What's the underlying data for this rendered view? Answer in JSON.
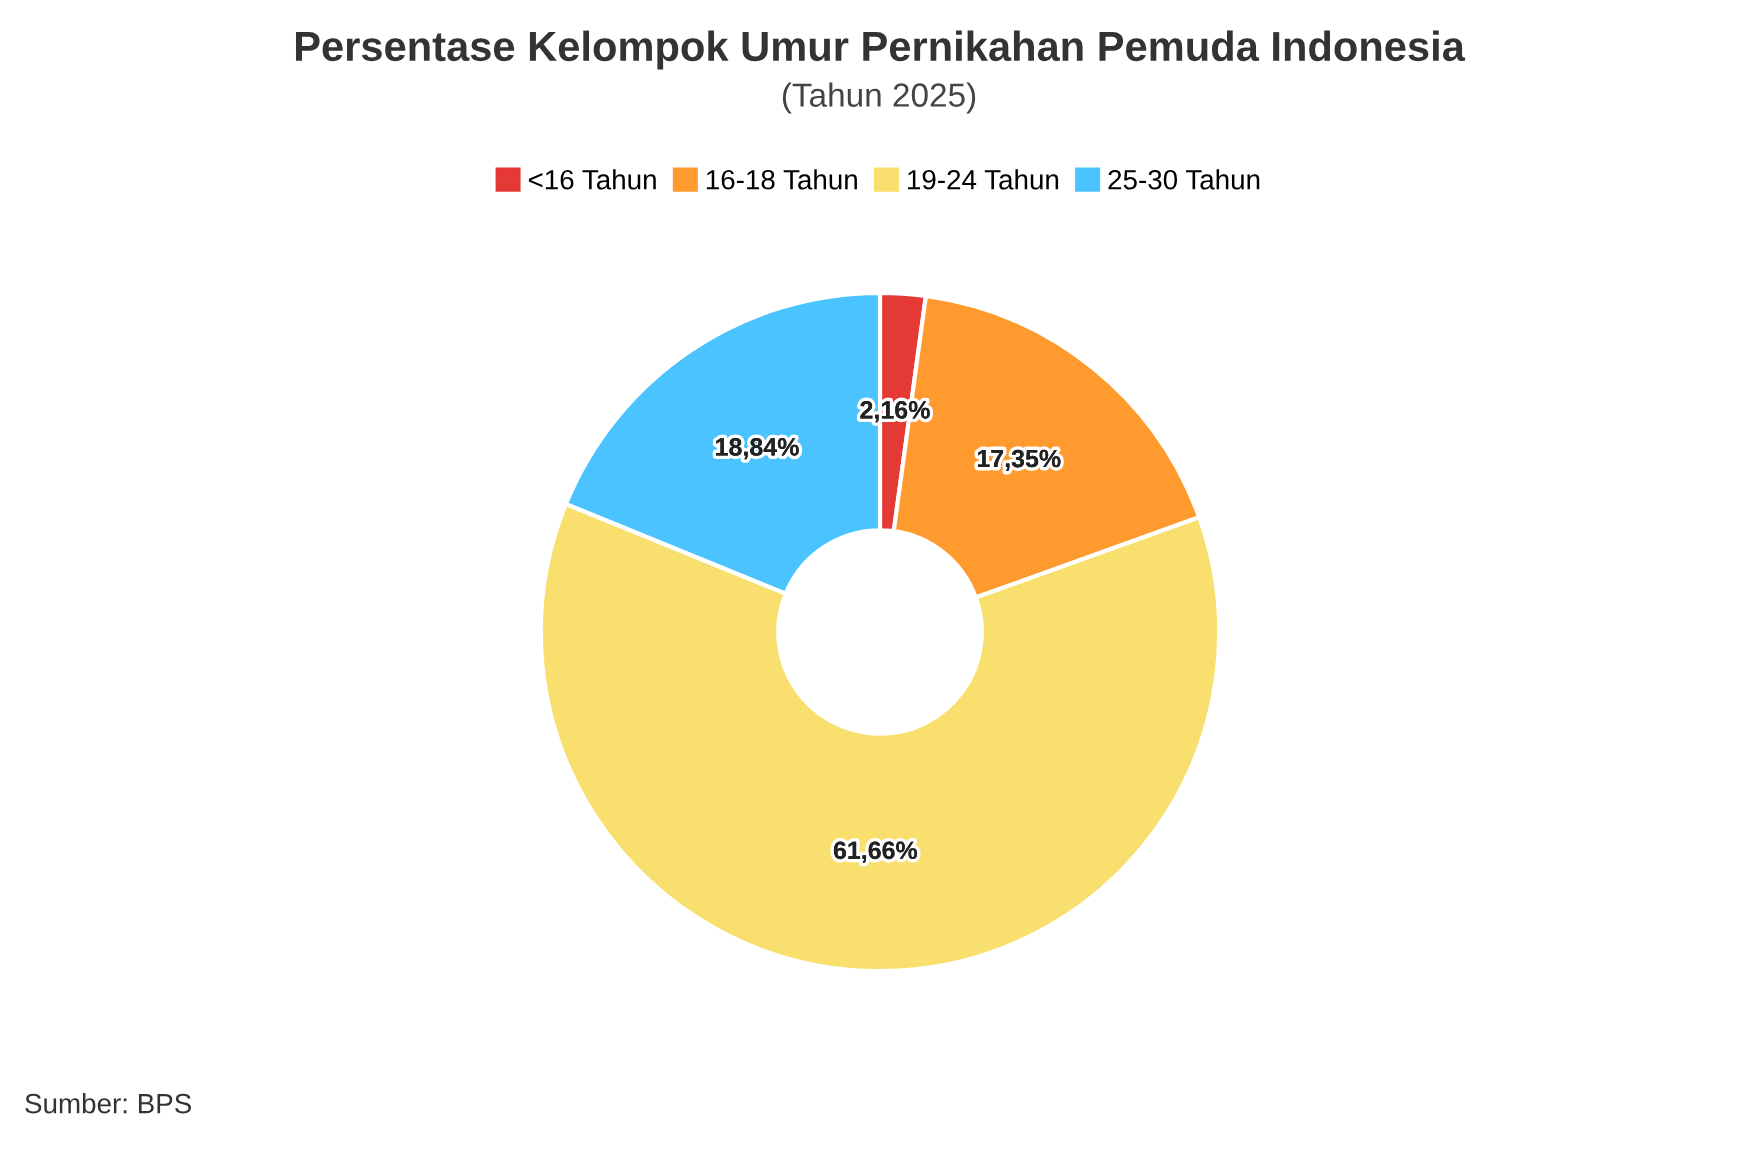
{
  "chart_data": {
    "type": "donut",
    "title": "Persentase Kelompok Umur Pernikahan Pemuda Indonesia",
    "subtitle": "(Tahun 2025)",
    "categories": [
      "<16 Tahun",
      "16-18 Tahun",
      "19-24 Tahun",
      "25-30 Tahun"
    ],
    "values": [
      2.16,
      17.35,
      61.66,
      18.84
    ],
    "colors": [
      "#e53935",
      "#ff9a2e",
      "#f9df6e",
      "#4bc3ff"
    ],
    "value_labels": [
      "2,16%",
      "17,35%",
      "61,66%",
      "18,84%"
    ],
    "legend": "top",
    "annotations": [
      "Sumber: BPS"
    ]
  }
}
